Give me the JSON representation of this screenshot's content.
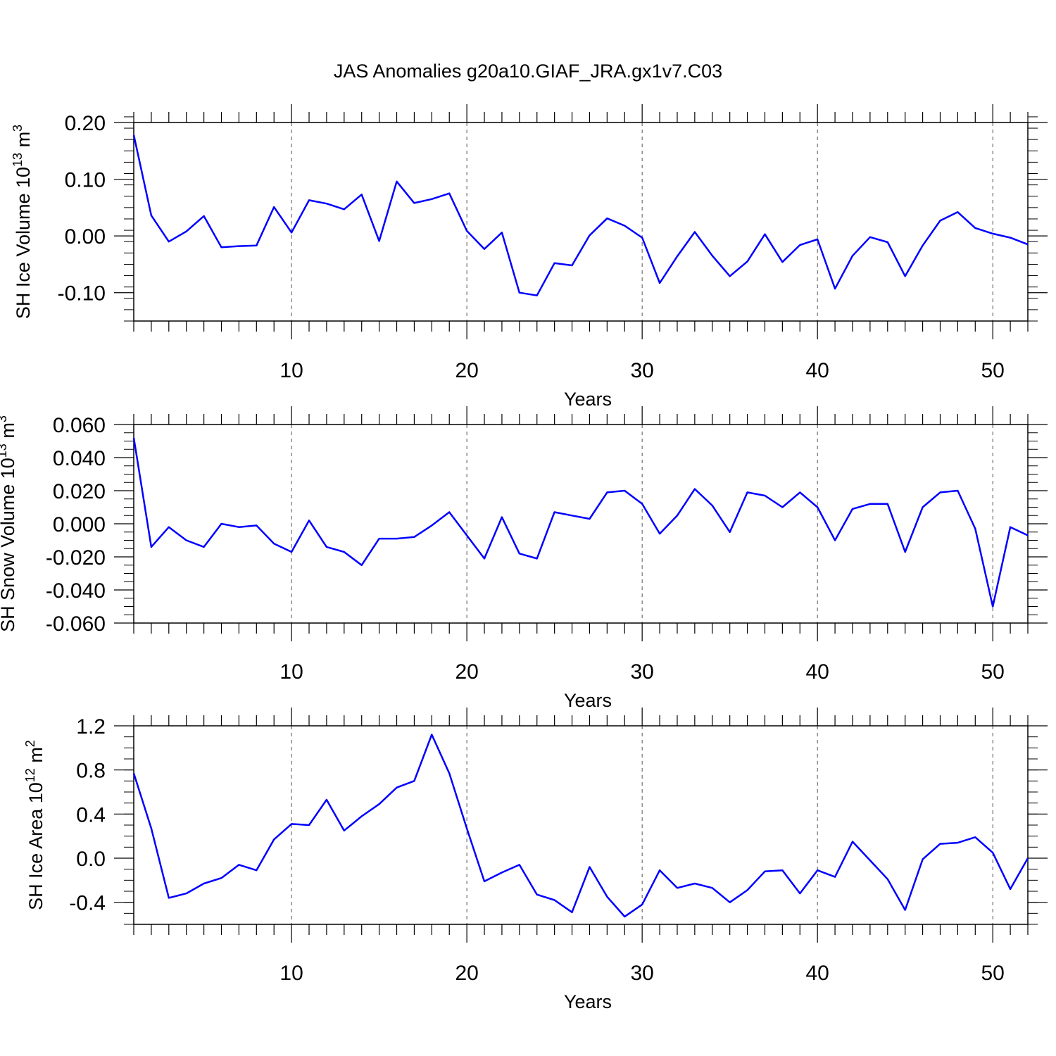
{
  "title": "JAS Anomalies g20a10.GIAF_JRA.gx1v7.C03",
  "chart_data": [
    {
      "type": "line",
      "ylabel_main": "SH Ice Volume 10",
      "ylabel_sup": "13",
      "ylabel_unit": "m",
      "ylabel_unit_sup": "3",
      "xlabel": "Years",
      "xlim": [
        1,
        52
      ],
      "ylim": [
        -0.15,
        0.2
      ],
      "xticks": [
        10,
        20,
        30,
        40,
        50
      ],
      "xtick_labels": [
        "10",
        "20",
        "30",
        "40",
        "50"
      ],
      "yticks": [
        0.2,
        0.1,
        0.0,
        -0.1
      ],
      "ytick_labels": [
        "0.20",
        "0.10",
        "0.00",
        "-0.10"
      ],
      "ymin_step": 0.02,
      "series": [
        {
          "name": "SH Ice Volume",
          "color": "#0000ff",
          "x": [
            1,
            2,
            3,
            4,
            5,
            6,
            7,
            8,
            9,
            10,
            11,
            12,
            13,
            14,
            15,
            16,
            17,
            18,
            19,
            20,
            21,
            22,
            23,
            24,
            25,
            26,
            27,
            28,
            29,
            30,
            31,
            32,
            33,
            34,
            35,
            36,
            37,
            38,
            39,
            40,
            41,
            42,
            43,
            44,
            45,
            46,
            47,
            48,
            49,
            50,
            51,
            52
          ],
          "values": [
            0.178,
            0.036,
            -0.01,
            0.008,
            0.035,
            -0.02,
            -0.018,
            -0.017,
            0.051,
            0.006,
            0.063,
            0.057,
            0.047,
            0.073,
            -0.009,
            0.096,
            0.058,
            0.065,
            0.075,
            0.009,
            -0.023,
            0.006,
            -0.1,
            -0.105,
            -0.048,
            -0.052,
            0.001,
            0.031,
            0.018,
            -0.003,
            -0.083,
            -0.036,
            0.007,
            -0.035,
            -0.071,
            -0.045,
            0.003,
            -0.046,
            -0.016,
            -0.006,
            -0.093,
            -0.035,
            -0.002,
            -0.011,
            -0.071,
            -0.017,
            0.027,
            0.042,
            0.014,
            0.004,
            -0.003,
            -0.015
          ]
        }
      ]
    },
    {
      "type": "line",
      "ylabel_main": "SH Snow Volume 10",
      "ylabel_sup": "13",
      "ylabel_unit": "m",
      "ylabel_unit_sup": "3",
      "xlabel": "Years",
      "xlim": [
        1,
        52
      ],
      "ylim": [
        -0.06,
        0.06
      ],
      "xticks": [
        10,
        20,
        30,
        40,
        50
      ],
      "xtick_labels": [
        "10",
        "20",
        "30",
        "40",
        "50"
      ],
      "yticks": [
        0.06,
        0.04,
        0.02,
        0.0,
        -0.02,
        -0.04,
        -0.06
      ],
      "ytick_labels": [
        "0.060",
        "0.040",
        "0.020",
        "0.000",
        "-0.020",
        "-0.040",
        "-0.060"
      ],
      "ymin_step": 0.005,
      "series": [
        {
          "name": "SH Snow Volume",
          "color": "#0000ff",
          "x": [
            1,
            2,
            3,
            4,
            5,
            6,
            7,
            8,
            9,
            10,
            11,
            12,
            13,
            14,
            15,
            16,
            17,
            18,
            19,
            20,
            21,
            22,
            23,
            24,
            25,
            26,
            27,
            28,
            29,
            30,
            31,
            32,
            33,
            34,
            35,
            36,
            37,
            38,
            39,
            40,
            41,
            42,
            43,
            44,
            45,
            46,
            47,
            48,
            49,
            50,
            51,
            52
          ],
          "values": [
            0.052,
            -0.014,
            -0.002,
            -0.01,
            -0.014,
            0.0,
            -0.002,
            -0.001,
            -0.012,
            -0.017,
            0.002,
            -0.014,
            -0.017,
            -0.025,
            -0.009,
            -0.009,
            -0.008,
            -0.001,
            0.007,
            -0.007,
            -0.021,
            0.004,
            -0.018,
            -0.021,
            0.007,
            0.005,
            0.003,
            0.019,
            0.02,
            0.012,
            -0.006,
            0.005,
            0.021,
            0.011,
            -0.005,
            0.019,
            0.017,
            0.01,
            0.019,
            0.01,
            -0.01,
            0.009,
            0.012,
            0.012,
            -0.017,
            0.01,
            0.019,
            0.02,
            -0.003,
            -0.05,
            -0.002,
            -0.007
          ]
        }
      ]
    },
    {
      "type": "line",
      "ylabel_main": "SH Ice Area 10",
      "ylabel_sup": "12",
      "ylabel_unit": "m",
      "ylabel_unit_sup": "2",
      "xlabel": "Years",
      "xlim": [
        1,
        52
      ],
      "ylim": [
        -0.6,
        1.2
      ],
      "xticks": [
        10,
        20,
        30,
        40,
        50
      ],
      "xtick_labels": [
        "10",
        "20",
        "30",
        "40",
        "50"
      ],
      "yticks": [
        1.2,
        0.8,
        0.4,
        0.0,
        -0.4
      ],
      "ytick_labels": [
        "1.2",
        "0.8",
        "0.4",
        "0.0",
        "-0.4"
      ],
      "ymin_step": 0.1,
      "series": [
        {
          "name": "SH Ice Area",
          "color": "#0000ff",
          "x": [
            1,
            2,
            3,
            4,
            5,
            6,
            7,
            8,
            9,
            10,
            11,
            12,
            13,
            14,
            15,
            16,
            17,
            18,
            19,
            20,
            21,
            22,
            23,
            24,
            25,
            26,
            27,
            28,
            29,
            30,
            31,
            32,
            33,
            34,
            35,
            36,
            37,
            38,
            39,
            40,
            41,
            42,
            43,
            44,
            45,
            46,
            47,
            48,
            49,
            50,
            51,
            52
          ],
          "values": [
            0.77,
            0.27,
            -0.36,
            -0.32,
            -0.23,
            -0.18,
            -0.06,
            -0.11,
            0.17,
            0.31,
            0.3,
            0.53,
            0.25,
            0.38,
            0.49,
            0.64,
            0.7,
            1.12,
            0.77,
            0.27,
            -0.21,
            -0.13,
            -0.06,
            -0.33,
            -0.38,
            -0.49,
            -0.08,
            -0.35,
            -0.53,
            -0.42,
            -0.11,
            -0.27,
            -0.23,
            -0.27,
            -0.4,
            -0.29,
            -0.12,
            -0.11,
            -0.32,
            -0.11,
            -0.17,
            0.15,
            -0.02,
            -0.19,
            -0.47,
            -0.01,
            0.13,
            0.14,
            0.19,
            0.05,
            -0.28,
            0.0
          ]
        }
      ]
    }
  ]
}
